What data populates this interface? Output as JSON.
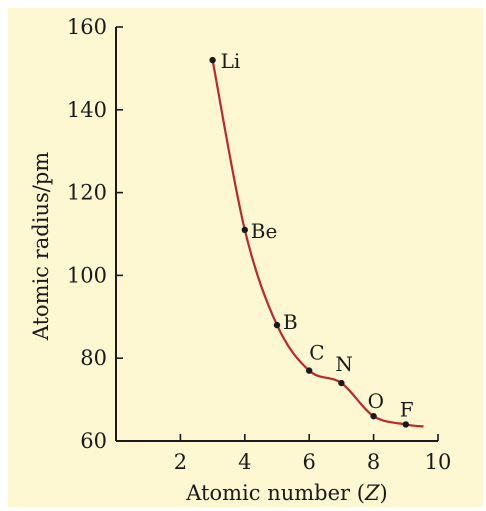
{
  "chart_data": {
    "type": "line",
    "xlabel_prefix": "Atomic number (",
    "xlabel_symbol": "Z",
    "xlabel_suffix": ")",
    "ylabel": "Atomic radius/pm",
    "xlim": [
      0,
      10
    ],
    "ylim": [
      60,
      160
    ],
    "xticks": [
      2,
      4,
      6,
      8,
      10
    ],
    "yticks": [
      60,
      80,
      100,
      120,
      140,
      160
    ],
    "grid": false,
    "background_color": "#fdf7d2",
    "line_color": "#c0272d",
    "point_color": "#1a1a1a",
    "points": [
      {
        "label": "Li",
        "x": 3,
        "y": 152
      },
      {
        "label": "Be",
        "x": 4,
        "y": 111
      },
      {
        "label": "B",
        "x": 5,
        "y": 88
      },
      {
        "label": "C",
        "x": 6,
        "y": 77
      },
      {
        "label": "N",
        "x": 7,
        "y": 74
      },
      {
        "label": "O",
        "x": 8,
        "y": 66
      },
      {
        "label": "F",
        "x": 9,
        "y": 64
      }
    ]
  }
}
